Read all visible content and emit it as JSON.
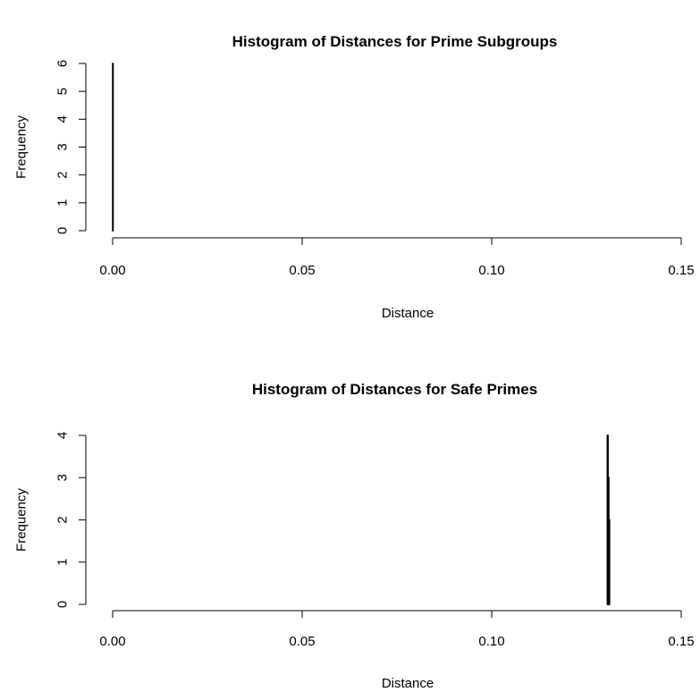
{
  "chart_data": [
    {
      "type": "bar",
      "title": "Histogram of Distances for Prime Subgroups",
      "xlabel": "Distance",
      "ylabel": "Frequency",
      "xlim": [
        0,
        0.15
      ],
      "ylim": [
        0,
        6
      ],
      "xticks": [
        0.0,
        0.05,
        0.1,
        0.15
      ],
      "xtick_labels": [
        "0.00",
        "0.05",
        "0.10",
        "0.15"
      ],
      "yticks": [
        0,
        1,
        2,
        3,
        4,
        5,
        6
      ],
      "ytick_labels": [
        "0",
        "1",
        "2",
        "3",
        "4",
        "5",
        "6"
      ],
      "grid": false,
      "bins": [
        {
          "x0": 0.0,
          "x1": 0.0001,
          "count": 6
        }
      ]
    },
    {
      "type": "bar",
      "title": "Histogram of Distances for Safe Primes",
      "xlabel": "Distance",
      "ylabel": "Frequency",
      "xlim": [
        0,
        0.15
      ],
      "ylim": [
        0,
        4
      ],
      "xticks": [
        0.0,
        0.05,
        0.1,
        0.15
      ],
      "xtick_labels": [
        "0.00",
        "0.05",
        "0.10",
        "0.15"
      ],
      "yticks": [
        0,
        1,
        2,
        3,
        4
      ],
      "ytick_labels": [
        "0",
        "1",
        "2",
        "3",
        "4"
      ],
      "grid": false,
      "bins": [
        {
          "x0": 0.1305,
          "x1": 0.1307,
          "count": 4
        },
        {
          "x0": 0.1307,
          "x1": 0.1309,
          "count": 3
        },
        {
          "x0": 0.1309,
          "x1": 0.1311,
          "count": 2
        }
      ]
    }
  ]
}
